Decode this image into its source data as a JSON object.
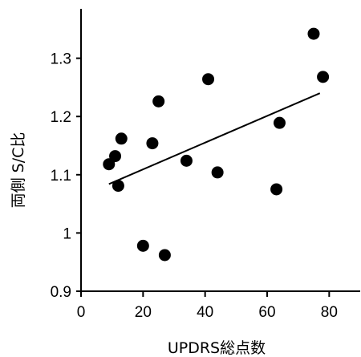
{
  "chart_data": {
    "type": "scatter",
    "title": "",
    "xlabel": "UPDRS総点数",
    "ylabel": "両側 S/C比",
    "xlim": [
      0,
      90
    ],
    "ylim": [
      0.9,
      1.4
    ],
    "x_ticks": [
      0,
      20,
      40,
      60,
      80
    ],
    "x_tick_labels": [
      "0",
      "20",
      "40",
      "60",
      "80"
    ],
    "y_ticks": [
      0.9,
      1.0,
      1.1,
      1.2,
      1.3
    ],
    "y_tick_labels": [
      "0.9",
      "1",
      "1.1",
      "1.2",
      "1.3"
    ],
    "grid": false,
    "legend": "none",
    "points": [
      {
        "x": 9,
        "y": 1.118
      },
      {
        "x": 11,
        "y": 1.132
      },
      {
        "x": 12,
        "y": 1.081
      },
      {
        "x": 13,
        "y": 1.162
      },
      {
        "x": 20,
        "y": 0.978
      },
      {
        "x": 23,
        "y": 1.154
      },
      {
        "x": 25,
        "y": 1.226
      },
      {
        "x": 27,
        "y": 0.962
      },
      {
        "x": 34,
        "y": 1.124
      },
      {
        "x": 41,
        "y": 1.264
      },
      {
        "x": 44,
        "y": 1.104
      },
      {
        "x": 63,
        "y": 1.075
      },
      {
        "x": 64,
        "y": 1.189
      },
      {
        "x": 75,
        "y": 1.342
      },
      {
        "x": 78,
        "y": 1.268
      }
    ],
    "trendline": {
      "x": [
        9,
        77
      ],
      "y": [
        1.084,
        1.24
      ]
    },
    "colors": {
      "point": "#000000",
      "line": "#000000",
      "axis": "#000000"
    }
  }
}
